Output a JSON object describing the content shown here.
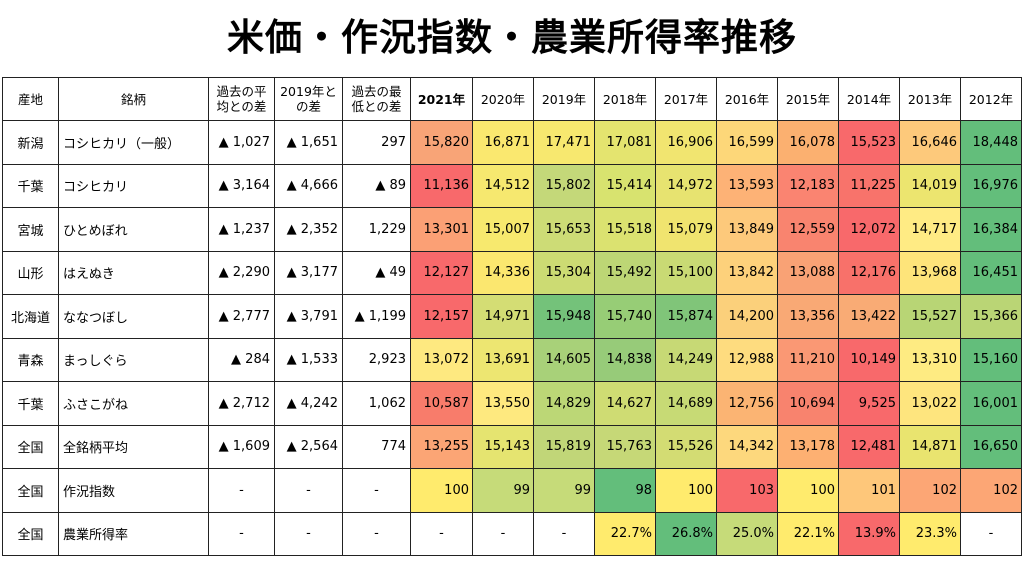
{
  "title": "米価・作況指数・農業所得率推移",
  "headers": {
    "origin": "産地",
    "brand": "銘柄",
    "diff_avg": "過去の平均との差",
    "diff_2019": "2019年との差",
    "diff_min": "過去の最低との差",
    "years": [
      "2021年",
      "2020年",
      "2019年",
      "2018年",
      "2017年",
      "2016年",
      "2015年",
      "2014年",
      "2013年",
      "2012年"
    ]
  },
  "rows": [
    {
      "origin": "新潟",
      "brand": "コシヒカリ（一般）",
      "diff_avg": "▲ 1,027",
      "diff_2019": "▲ 1,651",
      "diff_min": "297",
      "values": [
        "15,820",
        "16,871",
        "17,471",
        "17,081",
        "16,906",
        "16,599",
        "16,078",
        "15,523",
        "16,646",
        "18,448"
      ]
    },
    {
      "origin": "千葉",
      "brand": "コシヒカリ",
      "diff_avg": "▲ 3,164",
      "diff_2019": "▲ 4,666",
      "diff_min": "▲ 89",
      "values": [
        "11,136",
        "14,512",
        "15,802",
        "15,414",
        "14,972",
        "13,593",
        "12,183",
        "11,225",
        "14,019",
        "16,976"
      ]
    },
    {
      "origin": "宮城",
      "brand": "ひとめぼれ",
      "diff_avg": "▲ 1,237",
      "diff_2019": "▲ 2,352",
      "diff_min": "1,229",
      "values": [
        "13,301",
        "15,007",
        "15,653",
        "15,518",
        "15,079",
        "13,849",
        "12,559",
        "12,072",
        "14,717",
        "16,384"
      ]
    },
    {
      "origin": "山形",
      "brand": "はえぬき",
      "diff_avg": "▲ 2,290",
      "diff_2019": "▲ 3,177",
      "diff_min": "▲ 49",
      "values": [
        "12,127",
        "14,336",
        "15,304",
        "15,492",
        "15,100",
        "13,842",
        "13,088",
        "12,176",
        "13,968",
        "16,451"
      ]
    },
    {
      "origin": "北海道",
      "brand": "ななつぼし",
      "diff_avg": "▲ 2,777",
      "diff_2019": "▲ 3,791",
      "diff_min": "▲ 1,199",
      "values": [
        "12,157",
        "14,971",
        "15,948",
        "15,740",
        "15,874",
        "14,200",
        "13,356",
        "13,422",
        "15,527",
        "15,366"
      ]
    },
    {
      "origin": "青森",
      "brand": "まっしぐら",
      "diff_avg": "▲ 284",
      "diff_2019": "▲ 1,533",
      "diff_min": "2,923",
      "values": [
        "13,072",
        "13,691",
        "14,605",
        "14,838",
        "14,249",
        "12,988",
        "11,210",
        "10,149",
        "13,310",
        "15,160"
      ]
    },
    {
      "origin": "千葉",
      "brand": "ふさこがね",
      "diff_avg": "▲ 2,712",
      "diff_2019": "▲ 4,242",
      "diff_min": "1,062",
      "values": [
        "10,587",
        "13,550",
        "14,829",
        "14,627",
        "14,689",
        "12,756",
        "10,694",
        "9,525",
        "13,022",
        "16,001"
      ]
    },
    {
      "origin": "全国",
      "brand": "全銘柄平均",
      "diff_avg": "▲ 1,609",
      "diff_2019": "▲ 2,564",
      "diff_min": "774",
      "values": [
        "13,255",
        "15,143",
        "15,819",
        "15,763",
        "15,526",
        "14,342",
        "13,178",
        "12,481",
        "14,871",
        "16,650"
      ]
    },
    {
      "origin": "全国",
      "brand": "作況指数",
      "diff_avg": "-",
      "diff_2019": "-",
      "diff_min": "-",
      "values": [
        "100",
        "99",
        "99",
        "98",
        "100",
        "103",
        "100",
        "101",
        "102",
        "102"
      ]
    },
    {
      "origin": "全国",
      "brand": "農業所得率",
      "diff_avg": "-",
      "diff_2019": "-",
      "diff_min": "-",
      "values": [
        "-",
        "-",
        "-",
        "22.7%",
        "26.8%",
        "25.0%",
        "22.1%",
        "13.9%",
        "23.3%",
        "-"
      ]
    }
  ],
  "colors": [
    [
      "#F8A477",
      "#FAE86F",
      "#F7E86F",
      "#E4E46F",
      "#F1E570",
      "#FDD779",
      "#FBB070",
      "#F8696B",
      "#FDC97B",
      "#63BE7B"
    ],
    [
      "#F8696B",
      "#F6E86F",
      "#C4D879",
      "#D8E36F",
      "#E7E370",
      "#FDB276",
      "#FA8471",
      "#F8736B",
      "#ECE56F",
      "#63BE7B"
    ],
    [
      "#FBA075",
      "#F7E96E",
      "#CDDC76",
      "#DBE270",
      "#F0E46F",
      "#FDC97B",
      "#F9846F",
      "#F8696B",
      "#FFEB84",
      "#63BE7B"
    ],
    [
      "#F8696B",
      "#FBE76F",
      "#CCDB73",
      "#BDD675",
      "#C9DA74",
      "#FDD17B",
      "#F9A275",
      "#F8716A",
      "#FEE47A",
      "#63BE7B"
    ],
    [
      "#F8696B",
      "#D4DD74",
      "#74C27A",
      "#97CD76",
      "#80C579",
      "#FBD07B",
      "#F9A975",
      "#F9AB75",
      "#B8D575",
      "#BAD575"
    ],
    [
      "#FEE980",
      "#EDE671",
      "#A8D179",
      "#97CB79",
      "#C7D975",
      "#FEDC7F",
      "#FA9874",
      "#F8696B",
      "#FEEB82",
      "#63BE7B"
    ],
    [
      "#F87C6B",
      "#FEE97F",
      "#BCD776",
      "#CFDC73",
      "#C7DA75",
      "#FBB473",
      "#F8836E",
      "#F8696B",
      "#FEE57E",
      "#63BE7B"
    ],
    [
      "#FBA575",
      "#E5E470",
      "#C1D678",
      "#C6D877",
      "#D3DC73",
      "#FDD87D",
      "#FDB072",
      "#F8696B",
      "#E9E46F",
      "#63BE7B"
    ],
    [
      "#FFEB6D",
      "#C6DB79",
      "#C6DB79",
      "#63BE7B",
      "#FFEB6D",
      "#F8696B",
      "#FFEB6D",
      "#FEC77A",
      "#FCA675",
      "#FCA675"
    ],
    [
      "#FFFFFF",
      "#FFFFFF",
      "#FFFFFF",
      "#FFEB6D",
      "#63BE7B",
      "#C6DB79",
      "#FFEB6D",
      "#F8696B",
      "#FFEB6D",
      "#FFFFFF"
    ]
  ]
}
